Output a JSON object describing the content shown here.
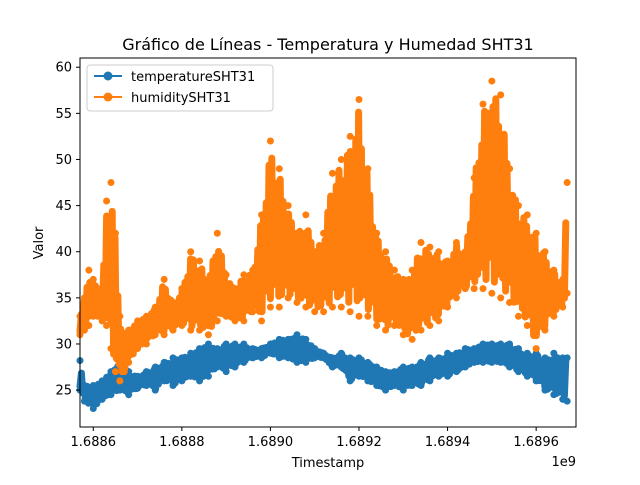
{
  "chart_data": {
    "type": "line",
    "title": "Gráfico de Líneas - Temperatura y Humedad SHT31",
    "xlabel": "Timestamp",
    "ylabel": "Valor",
    "x_offset_label": "1e9",
    "xlim": [
      1.68857,
      1.68969
    ],
    "ylim": [
      21,
      61
    ],
    "xticks": [
      1.6886,
      1.6888,
      1.689,
      1.6892,
      1.6894,
      1.6896
    ],
    "xtick_labels": [
      "1.6886",
      "1.6888",
      "1.6890",
      "1.6892",
      "1.6894",
      "1.6896"
    ],
    "yticks": [
      25,
      30,
      35,
      40,
      45,
      50,
      55,
      60
    ],
    "ytick_labels": [
      "25",
      "30",
      "35",
      "40",
      "45",
      "50",
      "55",
      "60"
    ],
    "legend_position": "upper-left",
    "grid": false,
    "series": [
      {
        "name": "temperatureSHT31",
        "color": "#1f77b4",
        "marker": "circle",
        "x": [
          1.68857,
          1.68858,
          1.6886,
          1.68862,
          1.68864,
          1.68866,
          1.68868,
          1.6887,
          1.68872,
          1.68874,
          1.68876,
          1.68878,
          1.6888,
          1.68882,
          1.68884,
          1.68886,
          1.68888,
          1.6889,
          1.68892,
          1.68894,
          1.68896,
          1.68898,
          1.689,
          1.68902,
          1.68904,
          1.68906,
          1.68908,
          1.6891,
          1.68912,
          1.68914,
          1.68916,
          1.68918,
          1.6892,
          1.68922,
          1.68924,
          1.68926,
          1.68928,
          1.6893,
          1.68932,
          1.68934,
          1.68936,
          1.68938,
          1.6894,
          1.68942,
          1.68944,
          1.68946,
          1.68948,
          1.6895,
          1.68952,
          1.68954,
          1.68956,
          1.68958,
          1.6896,
          1.68962,
          1.68964,
          1.68966,
          1.68967
        ],
        "ymin": [
          25.0,
          23.8,
          23.0,
          24.0,
          24.5,
          25.0,
          24.5,
          25.2,
          25.5,
          25.0,
          26.0,
          25.5,
          26.0,
          26.5,
          26.0,
          26.5,
          27.5,
          27.0,
          27.5,
          28.0,
          28.5,
          28.5,
          29.0,
          28.5,
          28.5,
          28.0,
          28.0,
          28.5,
          28.5,
          27.5,
          27.5,
          26.0,
          26.5,
          26.0,
          25.5,
          25.0,
          25.5,
          25.0,
          25.5,
          25.5,
          26.0,
          26.5,
          26.5,
          27.0,
          27.5,
          28.0,
          28.0,
          28.0,
          28.0,
          27.5,
          27.0,
          26.5,
          26.0,
          25.0,
          24.5,
          24.0,
          23.8
        ],
        "ymax": [
          28.2,
          25.5,
          25.5,
          26.0,
          27.0,
          28.0,
          27.0,
          26.5,
          27.0,
          27.5,
          28.0,
          28.5,
          28.5,
          29.0,
          29.5,
          30.0,
          29.5,
          30.0,
          30.0,
          30.0,
          29.5,
          29.5,
          30.0,
          30.5,
          30.5,
          31.0,
          30.5,
          29.5,
          29.0,
          28.5,
          29.0,
          28.5,
          28.5,
          28.0,
          27.5,
          27.0,
          27.0,
          27.5,
          27.5,
          28.0,
          28.5,
          28.5,
          29.0,
          29.0,
          29.5,
          29.5,
          30.0,
          30.0,
          30.0,
          30.0,
          29.5,
          29.0,
          29.0,
          28.5,
          29.0,
          28.5,
          28.5
        ]
      },
      {
        "name": "humiditySHT31",
        "color": "#ff7f0e",
        "marker": "circle",
        "x": [
          1.68857,
          1.68858,
          1.68859,
          1.6886,
          1.68861,
          1.68862,
          1.68863,
          1.68864,
          1.68865,
          1.68866,
          1.68867,
          1.68868,
          1.6887,
          1.68872,
          1.68874,
          1.68876,
          1.68878,
          1.6888,
          1.68882,
          1.68884,
          1.68886,
          1.68888,
          1.6889,
          1.68892,
          1.68894,
          1.68896,
          1.68898,
          1.689,
          1.68902,
          1.68904,
          1.68906,
          1.68908,
          1.6891,
          1.68912,
          1.68914,
          1.68916,
          1.68918,
          1.6892,
          1.68922,
          1.68924,
          1.68926,
          1.68928,
          1.6893,
          1.68932,
          1.68934,
          1.68936,
          1.68938,
          1.6894,
          1.68942,
          1.68944,
          1.68946,
          1.68948,
          1.6895,
          1.68952,
          1.68954,
          1.68956,
          1.68958,
          1.6896,
          1.68962,
          1.68964,
          1.68966,
          1.68967
        ],
        "ymin": [
          31.0,
          31.5,
          32.0,
          33.0,
          33.0,
          32.5,
          32.0,
          29.5,
          27.0,
          26.0,
          27.0,
          28.0,
          29.5,
          30.0,
          31.0,
          31.0,
          31.5,
          32.0,
          31.5,
          31.5,
          31.0,
          32.5,
          33.0,
          32.5,
          32.5,
          33.5,
          32.5,
          34.0,
          34.0,
          35.0,
          34.5,
          34.0,
          33.5,
          33.5,
          34.0,
          34.0,
          33.5,
          33.0,
          33.0,
          32.0,
          31.5,
          32.0,
          31.0,
          30.5,
          31.5,
          32.0,
          32.5,
          34.0,
          35.0,
          36.0,
          36.0,
          36.0,
          35.5,
          35.0,
          34.5,
          33.0,
          32.0,
          29.5,
          31.5,
          33.0,
          34.0,
          35.5
        ],
        "ymax": [
          33.0,
          35.0,
          38.0,
          37.0,
          36.0,
          35.0,
          45.5,
          47.5,
          42.0,
          33.0,
          31.0,
          31.5,
          32.5,
          33.0,
          34.0,
          37.0,
          34.5,
          36.0,
          40.0,
          39.0,
          37.0,
          42.0,
          37.5,
          36.0,
          37.5,
          38.0,
          44.0,
          52.0,
          49.0,
          45.0,
          42.0,
          44.0,
          40.0,
          42.0,
          48.5,
          50.0,
          52.5,
          56.5,
          49.0,
          42.0,
          40.0,
          38.0,
          37.0,
          38.0,
          41.0,
          40.5,
          40.0,
          39.0,
          41.0,
          40.0,
          48.0,
          56.0,
          58.5,
          57.0,
          49.0,
          45.0,
          44.0,
          42.0,
          40.0,
          38.0,
          36.5,
          47.5
        ]
      }
    ]
  }
}
